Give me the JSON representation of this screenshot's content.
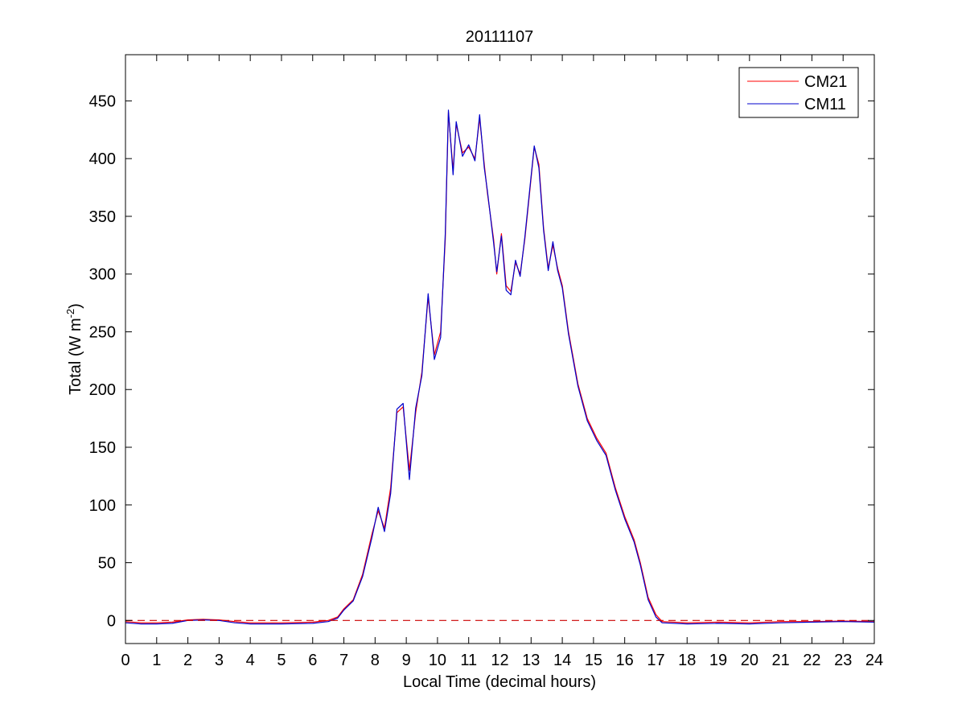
{
  "window": {
    "title": "20111107"
  },
  "chart_data": {
    "type": "line",
    "title": "20111107",
    "xlabel": "Local Time (decimal hours)",
    "ylabel_main": "Total (W m",
    "ylabel_sup": "-2",
    "ylabel_close": ")",
    "xlim": [
      0,
      24
    ],
    "ylim": [
      -20,
      490
    ],
    "xticks": [
      0,
      1,
      2,
      3,
      4,
      5,
      6,
      7,
      8,
      9,
      10,
      11,
      12,
      13,
      14,
      15,
      16,
      17,
      18,
      19,
      20,
      21,
      22,
      23,
      24
    ],
    "yticks": [
      0,
      50,
      100,
      150,
      200,
      250,
      300,
      350,
      400,
      450
    ],
    "grid": false,
    "legend_position": "top-right",
    "zero_line": {
      "y": 0,
      "style": "dashed",
      "color": "#cc0000"
    },
    "series": [
      {
        "name": "CM21",
        "color": "#ff0000",
        "points": [
          [
            0,
            -1
          ],
          [
            0.5,
            -2
          ],
          [
            1,
            -2
          ],
          [
            1.5,
            -1.5
          ],
          [
            2,
            0.5
          ],
          [
            2.5,
            1
          ],
          [
            3,
            0.5
          ],
          [
            3.5,
            -1
          ],
          [
            4,
            -2
          ],
          [
            5,
            -2
          ],
          [
            6,
            -1.5
          ],
          [
            6.5,
            0
          ],
          [
            6.8,
            3
          ],
          [
            7,
            10
          ],
          [
            7.3,
            18
          ],
          [
            7.6,
            40
          ],
          [
            7.9,
            75
          ],
          [
            8.1,
            95
          ],
          [
            8.3,
            80
          ],
          [
            8.5,
            115
          ],
          [
            8.7,
            180
          ],
          [
            8.9,
            185
          ],
          [
            9.1,
            130
          ],
          [
            9.3,
            180
          ],
          [
            9.5,
            215
          ],
          [
            9.7,
            280
          ],
          [
            9.9,
            230
          ],
          [
            10.1,
            250
          ],
          [
            10.25,
            330
          ],
          [
            10.35,
            440
          ],
          [
            10.5,
            390
          ],
          [
            10.6,
            430
          ],
          [
            10.8,
            405
          ],
          [
            11,
            410
          ],
          [
            11.2,
            400
          ],
          [
            11.35,
            435
          ],
          [
            11.5,
            395
          ],
          [
            11.6,
            370
          ],
          [
            11.8,
            330
          ],
          [
            11.9,
            300
          ],
          [
            12.05,
            335
          ],
          [
            12.2,
            290
          ],
          [
            12.35,
            285
          ],
          [
            12.5,
            310
          ],
          [
            12.65,
            300
          ],
          [
            12.8,
            330
          ],
          [
            12.95,
            370
          ],
          [
            13.1,
            410
          ],
          [
            13.25,
            395
          ],
          [
            13.4,
            340
          ],
          [
            13.55,
            305
          ],
          [
            13.7,
            325
          ],
          [
            13.85,
            305
          ],
          [
            14.0,
            290
          ],
          [
            14.2,
            250
          ],
          [
            14.5,
            205
          ],
          [
            14.8,
            175
          ],
          [
            15.1,
            158
          ],
          [
            15.4,
            145
          ],
          [
            15.7,
            115
          ],
          [
            16.0,
            90
          ],
          [
            16.3,
            70
          ],
          [
            16.5,
            50
          ],
          [
            16.75,
            20
          ],
          [
            17.0,
            5
          ],
          [
            17.2,
            -1
          ],
          [
            18,
            -2
          ],
          [
            19,
            -1.5
          ],
          [
            20,
            -2
          ],
          [
            21,
            -1
          ],
          [
            22,
            -1
          ],
          [
            23,
            -0.5
          ],
          [
            24,
            -1
          ]
        ]
      },
      {
        "name": "CM11",
        "color": "#0000cc",
        "points": [
          [
            0,
            -2
          ],
          [
            0.5,
            -3
          ],
          [
            1,
            -3
          ],
          [
            1.5,
            -2.5
          ],
          [
            2,
            0
          ],
          [
            2.5,
            0.5
          ],
          [
            3,
            0
          ],
          [
            3.5,
            -2
          ],
          [
            4,
            -3
          ],
          [
            5,
            -3
          ],
          [
            6,
            -2.5
          ],
          [
            6.5,
            -1
          ],
          [
            6.8,
            2
          ],
          [
            7,
            9
          ],
          [
            7.3,
            17
          ],
          [
            7.6,
            38
          ],
          [
            7.9,
            72
          ],
          [
            8.1,
            98
          ],
          [
            8.3,
            77
          ],
          [
            8.5,
            110
          ],
          [
            8.7,
            183
          ],
          [
            8.9,
            188
          ],
          [
            9.1,
            122
          ],
          [
            9.3,
            184
          ],
          [
            9.5,
            212
          ],
          [
            9.7,
            283
          ],
          [
            9.9,
            226
          ],
          [
            10.1,
            245
          ],
          [
            10.25,
            335
          ],
          [
            10.35,
            442
          ],
          [
            10.5,
            386
          ],
          [
            10.6,
            432
          ],
          [
            10.8,
            402
          ],
          [
            11,
            412
          ],
          [
            11.2,
            398
          ],
          [
            11.35,
            438
          ],
          [
            11.5,
            392
          ],
          [
            11.6,
            372
          ],
          [
            11.8,
            327
          ],
          [
            11.9,
            302
          ],
          [
            12.05,
            333
          ],
          [
            12.2,
            286
          ],
          [
            12.35,
            282
          ],
          [
            12.5,
            312
          ],
          [
            12.65,
            298
          ],
          [
            12.8,
            332
          ],
          [
            12.95,
            372
          ],
          [
            13.1,
            411
          ],
          [
            13.25,
            392
          ],
          [
            13.4,
            338
          ],
          [
            13.55,
            303
          ],
          [
            13.7,
            328
          ],
          [
            13.85,
            303
          ],
          [
            14.0,
            288
          ],
          [
            14.2,
            248
          ],
          [
            14.5,
            203
          ],
          [
            14.8,
            173
          ],
          [
            15.1,
            156
          ],
          [
            15.4,
            143
          ],
          [
            15.7,
            113
          ],
          [
            16.0,
            88
          ],
          [
            16.3,
            68
          ],
          [
            16.5,
            48
          ],
          [
            16.75,
            18
          ],
          [
            17.0,
            3
          ],
          [
            17.2,
            -2
          ],
          [
            18,
            -3
          ],
          [
            19,
            -2.5
          ],
          [
            20,
            -3
          ],
          [
            21,
            -2
          ],
          [
            22,
            -1.5
          ],
          [
            23,
            -1
          ],
          [
            24,
            -1.5
          ]
        ]
      }
    ]
  }
}
